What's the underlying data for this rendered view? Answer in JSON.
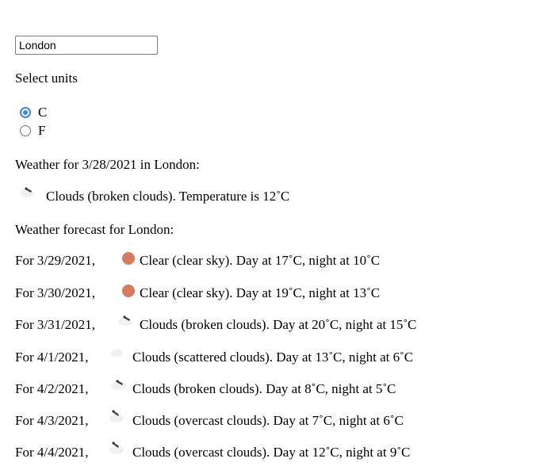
{
  "search": {
    "value": "London"
  },
  "units": {
    "label": "Select units",
    "options": [
      {
        "label": "C",
        "selected": true
      },
      {
        "label": "F",
        "selected": false
      }
    ],
    "accent_color": "#3b82f6"
  },
  "current": {
    "title": "Weather for 3/28/2021 in London:",
    "icon": "broken-clouds-icon",
    "text": "Clouds (broken clouds). Temperature is 12˚C"
  },
  "forecast": {
    "title": "Weather forecast for London:",
    "days": [
      {
        "date": "For 3/29/2021,",
        "icon": "clear-sky-icon",
        "text": "Clear (clear sky). Day at 17˚C, night at 10˚C"
      },
      {
        "date": "For 3/30/2021,",
        "icon": "clear-sky-icon",
        "text": "Clear (clear sky). Day at 19˚C, night at 13˚C"
      },
      {
        "date": "For 3/31/2021,",
        "icon": "broken-clouds-icon",
        "text": "Clouds (broken clouds). Day at 20˚C, night at 15˚C"
      },
      {
        "date": "For 4/1/2021,",
        "icon": "scattered-clouds-icon",
        "text": "Clouds (scattered clouds). Day at 13˚C, night at 6˚C"
      },
      {
        "date": "For 4/2/2021,",
        "icon": "broken-clouds-icon",
        "text": "Clouds (broken clouds). Day at 8˚C, night at 5˚C"
      },
      {
        "date": "For 4/3/2021,",
        "icon": "overcast-clouds-icon",
        "text": "Clouds (overcast clouds). Day at 7˚C, night at 6˚C"
      },
      {
        "date": "For 4/4/2021,",
        "icon": "overcast-clouds-icon",
        "text": "Clouds (overcast clouds). Day at 12˚C, night at 9˚C"
      }
    ]
  },
  "colors": {
    "sun": "#d87a5c",
    "cloud_light": "#f1f1f1",
    "cloud_dark": "#3a3a3a"
  }
}
